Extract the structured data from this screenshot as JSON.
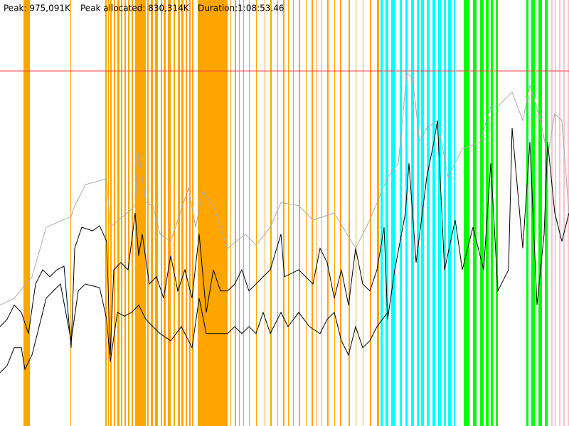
{
  "chart_data": {
    "type": "line",
    "peak": {
      "value": 975091,
      "label": "Peak: 975,091K"
    },
    "peak_color": "#ff4040",
    "peak_allocated": "Peak allocated: 830,314K",
    "duration": "Duration:1:08:53.46",
    "xlim": [
      0,
      800
    ],
    "ylim": [
      0,
      1170109
    ],
    "events": [
      {
        "color": "#ffa500",
        "spans": [
          [
            33,
            42
          ],
          [
            99,
            100
          ],
          [
            148,
            150
          ],
          [
            152,
            153
          ],
          [
            155,
            157
          ],
          [
            160,
            162
          ],
          [
            165,
            168
          ],
          [
            170,
            172
          ],
          [
            175,
            177
          ],
          [
            180,
            182
          ],
          [
            185,
            187
          ],
          [
            190,
            205
          ],
          [
            207,
            209
          ],
          [
            212,
            215
          ],
          [
            218,
            222
          ],
          [
            226,
            228
          ],
          [
            230,
            233
          ],
          [
            236,
            240
          ],
          [
            244,
            246
          ],
          [
            250,
            253
          ],
          [
            255,
            258
          ],
          [
            261,
            263
          ],
          [
            266,
            268
          ],
          [
            270,
            272
          ],
          [
            278,
            320
          ],
          [
            324,
            325
          ],
          [
            330,
            332
          ],
          [
            336,
            337
          ],
          [
            342,
            343
          ],
          [
            350,
            351
          ],
          [
            360,
            361
          ],
          [
            372,
            373
          ],
          [
            380,
            382
          ],
          [
            390,
            391
          ],
          [
            398,
            400
          ],
          [
            405,
            406
          ],
          [
            412,
            413
          ],
          [
            420,
            422
          ],
          [
            430,
            431
          ],
          [
            438,
            440
          ],
          [
            445,
            446
          ],
          [
            452,
            453
          ],
          [
            460,
            462
          ],
          [
            470,
            471
          ],
          [
            478,
            480
          ],
          [
            490,
            492
          ],
          [
            500,
            501
          ],
          [
            510,
            511
          ],
          [
            520,
            522
          ],
          [
            530,
            533
          ]
        ]
      },
      {
        "color": "#00ffff",
        "spans": [
          [
            535,
            538
          ],
          [
            542,
            546
          ],
          [
            550,
            556
          ],
          [
            562,
            565
          ],
          [
            570,
            573
          ],
          [
            578,
            582
          ],
          [
            586,
            589
          ],
          [
            592,
            596
          ],
          [
            600,
            604
          ],
          [
            608,
            612
          ],
          [
            616,
            620
          ],
          [
            624,
            627
          ],
          [
            630,
            635
          ],
          [
            638,
            640
          ]
        ]
      },
      {
        "color": "#00ff00",
        "spans": [
          [
            652,
            660
          ],
          [
            665,
            670
          ],
          [
            675,
            680
          ],
          [
            683,
            687
          ],
          [
            690,
            693
          ],
          [
            697,
            700
          ],
          [
            740,
            743
          ],
          [
            747,
            752
          ],
          [
            757,
            762
          ],
          [
            766,
            770
          ]
        ]
      },
      {
        "color": "#ffc0cb",
        "spans": [
          [
            775,
            777
          ],
          [
            780,
            782
          ],
          [
            786,
            788
          ],
          [
            792,
            794
          ],
          [
            798,
            800
          ]
        ]
      }
    ],
    "series": [
      {
        "color": "#aaaaaa",
        "x": [
          0,
          20,
          45,
          65,
          100,
          105,
          120,
          150,
          155,
          185,
          190,
          195,
          205,
          215,
          225,
          240,
          265,
          275,
          285,
          300,
          320,
          345,
          360,
          380,
          395,
          420,
          440,
          470,
          500,
          520,
          545,
          560,
          572,
          580,
          590,
          600,
          615,
          630,
          650,
          675,
          690,
          700,
          720,
          735,
          745,
          760,
          770,
          780,
          790,
          800
        ],
        "values": [
          332000,
          351000,
          410000,
          546000,
          575000,
          605000,
          663000,
          679000,
          546000,
          595000,
          605000,
          751000,
          614000,
          605000,
          527000,
          507000,
          653000,
          546000,
          644000,
          605000,
          488000,
          527000,
          497000,
          546000,
          614000,
          605000,
          566000,
          585000,
          488000,
          566000,
          683000,
          722000,
          969000,
          956000,
          780000,
          819000,
          839000,
          683000,
          761000,
          780000,
          878000,
          878000,
          917000,
          839000,
          936000,
          839000,
          741000,
          858000,
          839000,
          585000
        ]
      },
      {
        "color": "#000000",
        "x": [
          0,
          10,
          20,
          30,
          40,
          50,
          60,
          70,
          80,
          90,
          100,
          105,
          115,
          130,
          140,
          150,
          155,
          160,
          170,
          180,
          190,
          195,
          200,
          210,
          220,
          230,
          240,
          250,
          260,
          270,
          280,
          290,
          300,
          310,
          320,
          330,
          340,
          350,
          360,
          370,
          380,
          395,
          400,
          420,
          440,
          450,
          460,
          470,
          480,
          490,
          500,
          510,
          520,
          530,
          540,
          545,
          555,
          570,
          575,
          585,
          600,
          610,
          615,
          625,
          640,
          650,
          665,
          680,
          690,
          700,
          715,
          720,
          735,
          745,
          755,
          765,
          770,
          780,
          790,
          800
        ],
        "values": [
          273000,
          293000,
          332000,
          312000,
          254000,
          390000,
          429000,
          410000,
          429000,
          439000,
          215000,
          488000,
          546000,
          536000,
          550000,
          507000,
          195000,
          429000,
          449000,
          429000,
          585000,
          468000,
          527000,
          390000,
          410000,
          351000,
          468000,
          371000,
          429000,
          351000,
          527000,
          312000,
          429000,
          371000,
          371000,
          390000,
          429000,
          371000,
          390000,
          410000,
          429000,
          527000,
          410000,
          429000,
          390000,
          488000,
          449000,
          351000,
          429000,
          332000,
          488000,
          390000,
          371000,
          429000,
          546000,
          293000,
          429000,
          585000,
          722000,
          449000,
          683000,
          780000,
          839000,
          429000,
          566000,
          429000,
          546000,
          429000,
          722000,
          371000,
          429000,
          819000,
          488000,
          780000,
          332000,
          527000,
          780000,
          585000,
          507000,
          585000
        ]
      },
      {
        "color": "#000000",
        "x": [
          0,
          10,
          20,
          30,
          35,
          45,
          55,
          65,
          75,
          85,
          100,
          110,
          120,
          140,
          150,
          155,
          165,
          175,
          185,
          195,
          205,
          215,
          225,
          240,
          255,
          270,
          280,
          290,
          300,
          310,
          320,
          330,
          340,
          350,
          360,
          370,
          380,
          395,
          405,
          420,
          435,
          450,
          460,
          470,
          480,
          490,
          500,
          510,
          520,
          530,
          545
        ],
        "values": [
          146000,
          166000,
          215000,
          215000,
          156000,
          195000,
          273000,
          351000,
          371000,
          390000,
          234000,
          371000,
          390000,
          380000,
          293000,
          176000,
          312000,
          302000,
          312000,
          332000,
          293000,
          273000,
          254000,
          234000,
          273000,
          215000,
          351000,
          254000,
          254000,
          254000,
          254000,
          273000,
          254000,
          273000,
          254000,
          312000,
          254000,
          312000,
          273000,
          312000,
          273000,
          254000,
          293000,
          312000,
          234000,
          195000,
          273000,
          215000,
          234000,
          273000,
          312000
        ]
      }
    ]
  }
}
